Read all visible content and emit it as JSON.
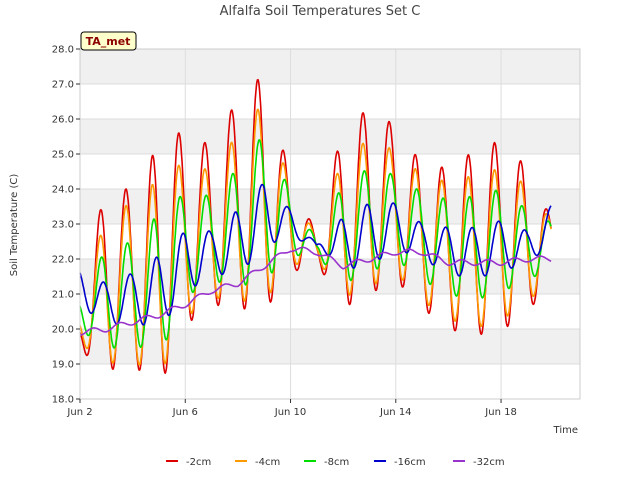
{
  "chart_data": {
    "type": "line",
    "title": "Alfalfa Soil Temperatures Set C",
    "xlabel": "Time",
    "ylabel": "Soil Temperature (C)",
    "badge": "TA_met",
    "ylim": [
      18.0,
      28.0
    ],
    "xlim": [
      2.0,
      21.0
    ],
    "yticks": [
      "18.0",
      "19.0",
      "20.0",
      "21.0",
      "22.0",
      "23.0",
      "24.0",
      "25.0",
      "26.0",
      "27.0",
      "28.0"
    ],
    "xticks": [
      {
        "label": "Jun 2",
        "day": 2
      },
      {
        "label": "Jun 6",
        "day": 6
      },
      {
        "label": "Jun 10",
        "day": 10
      },
      {
        "label": "Jun 14",
        "day": 14
      },
      {
        "label": "Jun 18",
        "day": 18
      }
    ],
    "grid": true,
    "legend_position": "bottom",
    "days": [
      2,
      3,
      4,
      5,
      6,
      7,
      8,
      9,
      10,
      11,
      12,
      13,
      14,
      15,
      16,
      17,
      18,
      19,
      20
    ],
    "series": [
      {
        "name": "-2cm",
        "color": "#dd0000",
        "max": [
          null,
          24.3,
          23.9,
          25.3,
          25.7,
          25.2,
          26.6,
          27.3,
          24.3,
          22.7,
          25.8,
          26.3,
          25.8,
          24.7,
          24.6,
          25.1,
          25.4,
          24.6,
          null
        ],
        "min": [
          19.4,
          18.8,
          19.0,
          18.3,
          20.1,
          20.7,
          20.6,
          20.5,
          21.6,
          21.9,
          20.6,
          21.0,
          21.4,
          20.6,
          20.0,
          19.8,
          20.0,
          20.3,
          22.0
        ]
      },
      {
        "name": "-4cm",
        "color": "#ff9900",
        "max": [
          null,
          23.3,
          23.6,
          24.3,
          24.8,
          24.5,
          25.6,
          26.5,
          24.1,
          22.6,
          25.0,
          25.4,
          25.1,
          24.4,
          24.2,
          24.4,
          24.6,
          24.1,
          null
        ],
        "min": [
          19.6,
          19.0,
          19.1,
          18.6,
          20.3,
          20.9,
          20.8,
          20.8,
          21.8,
          22.0,
          20.9,
          21.2,
          21.6,
          20.8,
          20.3,
          20.0,
          20.3,
          20.6,
          22.0
        ]
      },
      {
        "name": "-8cm",
        "color": "#00dd00",
        "max": [
          null,
          22.3,
          22.5,
          23.3,
          23.9,
          23.8,
          24.6,
          25.6,
          23.9,
          22.5,
          24.2,
          24.6,
          24.4,
          23.9,
          23.7,
          23.8,
          24.0,
          23.4,
          null
        ],
        "min": [
          20.0,
          19.4,
          19.6,
          19.2,
          20.9,
          21.4,
          21.2,
          21.4,
          22.1,
          22.1,
          21.3,
          21.6,
          22.0,
          21.4,
          21.0,
          20.8,
          21.1,
          21.3,
          22.0
        ]
      },
      {
        "name": "-16cm",
        "color": "#0000cc",
        "max": [
          null,
          21.3,
          21.6,
          22.1,
          22.8,
          22.8,
          23.4,
          24.2,
          23.4,
          22.4,
          23.2,
          23.6,
          23.6,
          23.0,
          22.9,
          22.9,
          23.1,
          22.8,
          null
        ],
        "min": [
          20.7,
          20.1,
          20.2,
          20.0,
          21.0,
          21.6,
          21.5,
          22.4,
          22.6,
          22.4,
          21.7,
          21.8,
          22.3,
          22.0,
          21.6,
          21.4,
          21.7,
          21.8,
          22.6
        ]
      },
      {
        "name": "-32cm",
        "color": "#9933cc",
        "trend": [
          19.9,
          20.0,
          20.2,
          20.4,
          20.7,
          21.1,
          21.3,
          21.8,
          22.3,
          22.2,
          21.8,
          22.0,
          22.2,
          22.2,
          21.9,
          21.9,
          21.9,
          22.0,
          22.0
        ]
      }
    ]
  }
}
